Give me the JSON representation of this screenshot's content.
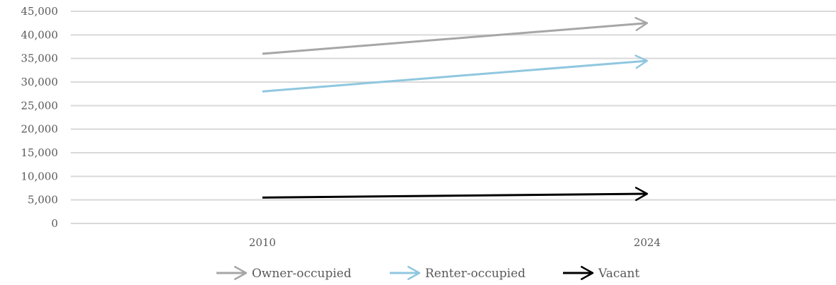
{
  "chart_data": {
    "type": "line",
    "categories": [
      "2010",
      "2024"
    ],
    "series": [
      {
        "name": "Owner-occupied",
        "values": [
          36000,
          42500
        ],
        "color": "#a6a6a6"
      },
      {
        "name": "Renter-occupied",
        "values": [
          28000,
          34500
        ],
        "color": "#8fc7df"
      },
      {
        "name": "Vacant",
        "values": [
          5500,
          6300
        ],
        "color": "#000000"
      }
    ],
    "y_ticks": [
      "0",
      "5,000",
      "10,000",
      "15,000",
      "20,000",
      "25,000",
      "30,000",
      "35,000",
      "40,000",
      "45,000"
    ],
    "ylim": [
      0,
      45000
    ],
    "grid": true,
    "legend_position": "bottom",
    "line_end": "arrow",
    "title": "",
    "xlabel": "",
    "ylabel": ""
  }
}
